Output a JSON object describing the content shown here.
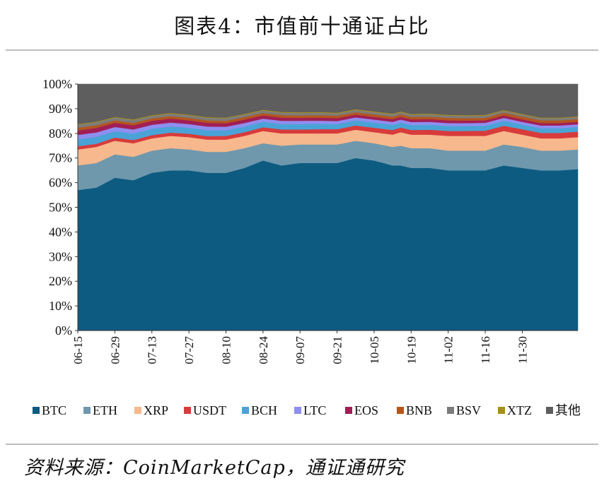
{
  "title": "图表4：市值前十通证占比",
  "source": "资料来源：CoinMarketCap，通证通研究",
  "chart_data": {
    "type": "area",
    "stacked": true,
    "ylim": [
      0,
      100
    ],
    "y_ticks": [
      "0%",
      "10%",
      "20%",
      "30%",
      "40%",
      "50%",
      "60%",
      "70%",
      "80%",
      "90%",
      "100%"
    ],
    "x_tick_labels": [
      "06-15",
      "06-29",
      "07-13",
      "07-27",
      "08-10",
      "08-24",
      "09-07",
      "09-21",
      "10-05",
      "10-19",
      "11-02",
      "11-16",
      "11-30"
    ],
    "legend_position": "bottom",
    "x_index": [
      0,
      7,
      14,
      21,
      28,
      35,
      42,
      49,
      56,
      63,
      70,
      77,
      84,
      91,
      98,
      105,
      112,
      119,
      122,
      126,
      133,
      140,
      147,
      154,
      161,
      168,
      175,
      182,
      189
    ],
    "series": [
      {
        "name": "BTC",
        "color": "#0d5b80",
        "values": [
          57,
          58,
          62,
          61,
          64,
          65,
          65,
          64,
          64,
          66,
          69,
          67,
          68,
          68,
          68,
          70,
          69,
          67,
          67,
          66,
          66,
          65,
          65,
          65,
          67,
          66,
          65,
          65,
          65.5
        ]
      },
      {
        "name": "ETH",
        "color": "#6f98ad",
        "values": [
          10,
          10,
          9.5,
          9.5,
          9,
          9,
          8.5,
          8.5,
          8.5,
          8,
          7,
          8,
          7.5,
          7.5,
          7.5,
          7,
          7,
          7.5,
          8,
          8,
          8,
          8,
          8,
          8,
          8.5,
          8.5,
          8,
          8,
          8
        ]
      },
      {
        "name": "XRP",
        "color": "#f6b88c",
        "values": [
          6.5,
          6.5,
          5.5,
          5.5,
          5,
          5,
          5,
          5,
          5,
          5,
          5,
          5,
          4.5,
          4.5,
          4.5,
          4.5,
          4.5,
          5,
          5.5,
          5.5,
          5.5,
          6,
          6,
          6,
          5.5,
          5,
          5,
          5,
          5
        ]
      },
      {
        "name": "USDT",
        "color": "#d83b3b",
        "values": [
          1.3,
          1.3,
          1.3,
          1.3,
          1.3,
          1.3,
          1.4,
          1.4,
          1.5,
          1.5,
          1.5,
          1.6,
          1.6,
          1.7,
          1.7,
          1.7,
          1.8,
          1.9,
          1.9,
          1.9,
          2,
          2,
          2,
          2.1,
          2.1,
          2.2,
          2.2,
          2.2,
          2.2
        ]
      },
      {
        "name": "BCH",
        "color": "#4aa3d6",
        "values": [
          2.8,
          2.8,
          2.6,
          2.6,
          2.6,
          2.5,
          2.4,
          2.4,
          2.3,
          2.3,
          2.2,
          2.2,
          2.2,
          2.2,
          2.1,
          2.1,
          2.1,
          2.1,
          2,
          2,
          2,
          2,
          2,
          2,
          2,
          1.9,
          1.9,
          1.9,
          1.9
        ]
      },
      {
        "name": "LTC",
        "color": "#8f8ef0",
        "values": [
          1.8,
          1.8,
          1.7,
          1.7,
          1.6,
          1.6,
          1.5,
          1.5,
          1.4,
          1.4,
          1.3,
          1.3,
          1.3,
          1.3,
          1.2,
          1.2,
          1.2,
          1.2,
          1.2,
          1.2,
          1.2,
          1.2,
          1.2,
          1.2,
          1.2,
          1.1,
          1.1,
          1.1,
          1.1
        ]
      },
      {
        "name": "EOS",
        "color": "#a21e55",
        "values": [
          1.8,
          1.8,
          1.7,
          1.7,
          1.6,
          1.6,
          1.5,
          1.5,
          1.4,
          1.4,
          1.3,
          1.3,
          1.2,
          1.2,
          1.2,
          1.1,
          1.1,
          1.1,
          1.1,
          1.1,
          1.1,
          1.1,
          1,
          1,
          1,
          1,
          1,
          1,
          1
        ]
      },
      {
        "name": "BNB",
        "color": "#b4561e",
        "values": [
          1.1,
          1.1,
          1,
          1,
          1,
          1,
          1,
          1,
          1,
          1,
          1,
          1,
          1,
          1,
          1,
          1,
          1,
          1,
          1,
          1,
          1,
          1,
          1,
          1,
          1.1,
          1.1,
          1.1,
          1.1,
          1.1
        ]
      },
      {
        "name": "BSV",
        "color": "#7c7c7c",
        "values": [
          1.2,
          1.2,
          1.1,
          1.1,
          1,
          1,
          1,
          1,
          1,
          1,
          1,
          1,
          1,
          1,
          0.9,
          0.9,
          0.9,
          0.9,
          0.9,
          0.9,
          0.9,
          0.9,
          0.9,
          0.9,
          0.8,
          0.8,
          0.8,
          0.8,
          0.8
        ]
      },
      {
        "name": "XTZ",
        "color": "#a88f18",
        "values": [
          0.3,
          0.3,
          0.3,
          0.3,
          0.3,
          0.3,
          0.3,
          0.3,
          0.3,
          0.3,
          0.3,
          0.3,
          0.3,
          0.3,
          0.3,
          0.3,
          0.3,
          0.3,
          0.3,
          0.3,
          0.3,
          0.3,
          0.3,
          0.3,
          0.3,
          0.3,
          0.3,
          0.3,
          0.3
        ]
      },
      {
        "name": "其他",
        "color": "#5e5e5e",
        "values": [
          16.2,
          15.2,
          13.3,
          14.3,
          12.6,
          11.7,
          12.4,
          13.4,
          13.6,
          11.1,
          10.4,
          10.3,
          10.4,
          10.3,
          10.6,
          10.2,
          10.4,
          11.1,
          10.1,
          11.1,
          11,
          11.5,
          11.6,
          11.4,
          9.5,
          11.1,
          12.6,
          12.6,
          12.1
        ]
      }
    ]
  }
}
